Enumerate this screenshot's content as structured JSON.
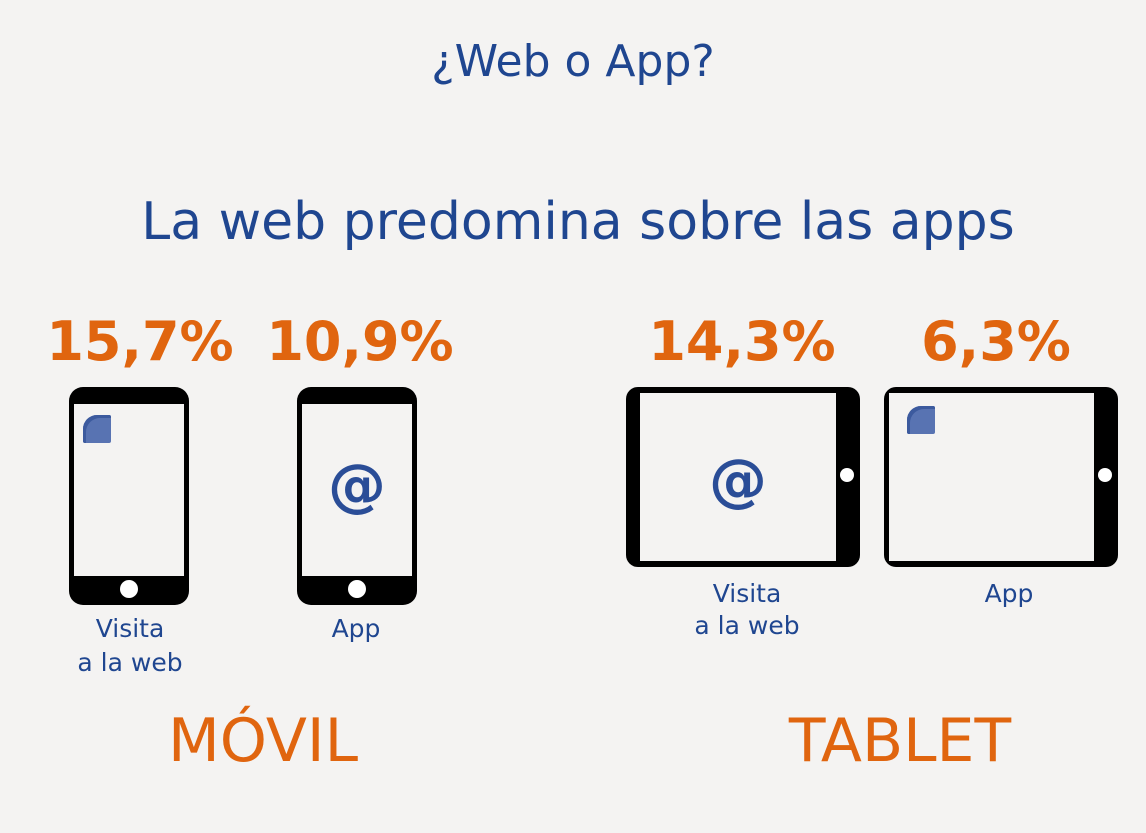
{
  "title": "¿Web o App?",
  "subtitle": "La web predomina sobre las apps",
  "movil": {
    "section_label": "MÓVIL",
    "web": {
      "percent": "15,7%",
      "label_line1": "Visita",
      "label_line2": "a la web"
    },
    "app": {
      "percent": "10,9%",
      "label": "App"
    }
  },
  "tablet": {
    "section_label": "TABLET",
    "web": {
      "percent": "14,3%",
      "label_line1": "Visita",
      "label_line2": "a la web"
    },
    "app": {
      "percent": "6,3%",
      "label": "App"
    }
  },
  "icons": {
    "at_symbol": "@",
    "app_square": "app-tile-icon",
    "home_button": "home-button-icon"
  },
  "colors": {
    "primary_blue": "#1f4690",
    "accent_orange": "#e0650f",
    "device_black": "#000000",
    "background": "#f4f3f2"
  }
}
